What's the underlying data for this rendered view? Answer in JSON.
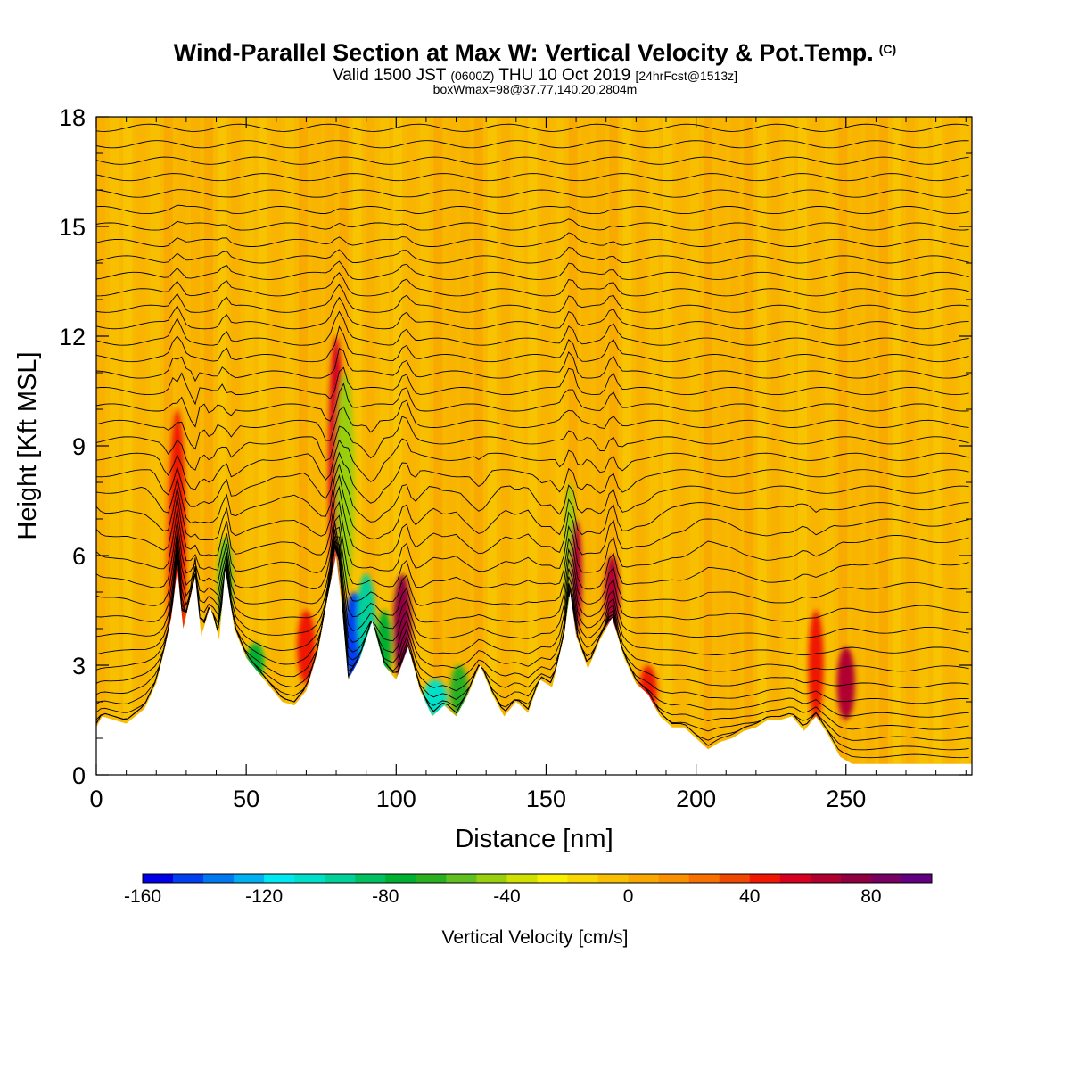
{
  "header": {
    "title": "Wind-Parallel Section at Max W: Vertical Velocity & Pot.Temp.",
    "copyright": "(C)",
    "valid_prefix": "Valid 1500 JST",
    "valid_z": "(0600Z)",
    "valid_date": "THU 10 Oct 2019",
    "forecast": "[24hrFcst@1513z]",
    "boxwmax": "boxWmax=98@37.77,140.20,2804m"
  },
  "chart_data": {
    "type": "heatmap",
    "title": "Wind-Parallel Section at Max W: Vertical Velocity & Pot.Temp.",
    "xlabel": "Distance [nm]",
    "ylabel": "Height [Kft MSL]",
    "xlim": [
      0,
      292
    ],
    "ylim": [
      0,
      18
    ],
    "x_ticks": [
      "0",
      "50",
      "100",
      "150",
      "200",
      "250"
    ],
    "y_ticks": [
      "0",
      "3",
      "6",
      "9",
      "12",
      "15",
      "18"
    ],
    "colorbar": {
      "label": "Vertical Velocity [cm/s]",
      "range": [
        -160,
        100
      ],
      "step": 10,
      "tick_labels": [
        "-160",
        "-120",
        "-80",
        "-40",
        "0",
        "40",
        "80"
      ],
      "colors": [
        "#0000e8",
        "#0040f0",
        "#0078f0",
        "#00b0f0",
        "#00e8f0",
        "#00e0c8",
        "#00d09a",
        "#00c060",
        "#00b030",
        "#28b020",
        "#60c020",
        "#98d010",
        "#d0e000",
        "#f8f000",
        "#f8d800",
        "#f8c000",
        "#f8a800",
        "#f89000",
        "#f87000",
        "#f04800",
        "#f01800",
        "#d80020",
        "#b00030",
        "#900040",
        "#780060",
        "#600080"
      ]
    },
    "terrain_kft": [
      [
        0,
        1.3
      ],
      [
        2,
        1.6
      ],
      [
        10,
        1.4
      ],
      [
        16,
        1.8
      ],
      [
        20,
        2.5
      ],
      [
        23,
        3.5
      ],
      [
        25,
        4.3
      ],
      [
        27,
        5.6
      ],
      [
        29,
        4.0
      ],
      [
        33,
        5.4
      ],
      [
        35,
        3.8
      ],
      [
        38,
        4.6
      ],
      [
        41,
        3.7
      ],
      [
        43,
        5.6
      ],
      [
        46,
        4.0
      ],
      [
        50,
        3.2
      ],
      [
        54,
        2.8
      ],
      [
        58,
        2.4
      ],
      [
        62,
        2.0
      ],
      [
        66,
        1.9
      ],
      [
        70,
        2.3
      ],
      [
        74,
        3.4
      ],
      [
        77,
        4.8
      ],
      [
        80,
        6.0
      ],
      [
        82,
        4.5
      ],
      [
        84,
        2.6
      ],
      [
        88,
        3.2
      ],
      [
        92,
        4.2
      ],
      [
        96,
        3.0
      ],
      [
        100,
        2.6
      ],
      [
        104,
        3.5
      ],
      [
        108,
        2.3
      ],
      [
        112,
        1.6
      ],
      [
        116,
        1.9
      ],
      [
        120,
        1.6
      ],
      [
        124,
        2.2
      ],
      [
        128,
        3.0
      ],
      [
        132,
        2.2
      ],
      [
        136,
        1.6
      ],
      [
        140,
        2.0
      ],
      [
        144,
        1.7
      ],
      [
        148,
        2.6
      ],
      [
        152,
        2.4
      ],
      [
        156,
        3.8
      ],
      [
        158,
        5.0
      ],
      [
        160,
        3.8
      ],
      [
        164,
        2.9
      ],
      [
        168,
        3.7
      ],
      [
        172,
        4.3
      ],
      [
        176,
        3.2
      ],
      [
        180,
        2.5
      ],
      [
        184,
        2.2
      ],
      [
        188,
        1.6
      ],
      [
        192,
        1.3
      ],
      [
        196,
        1.3
      ],
      [
        200,
        1.0
      ],
      [
        204,
        0.7
      ],
      [
        208,
        0.9
      ],
      [
        212,
        1.0
      ],
      [
        216,
        1.2
      ],
      [
        220,
        1.3
      ],
      [
        224,
        1.5
      ],
      [
        228,
        1.5
      ],
      [
        232,
        1.6
      ],
      [
        236,
        1.2
      ],
      [
        240,
        1.6
      ],
      [
        244,
        1.1
      ],
      [
        248,
        0.5
      ],
      [
        252,
        0.3
      ],
      [
        260,
        0.3
      ],
      [
        270,
        0.3
      ],
      [
        280,
        0.3
      ],
      [
        292,
        0.3
      ]
    ],
    "vertical_velocity_features": [
      {
        "x": 27,
        "w": 3,
        "z": [
          1.5,
          10
        ],
        "w_cms": 40
      },
      {
        "x": 43,
        "w": 2.5,
        "z": [
          4,
          6.5
        ],
        "w_cms": -60
      },
      {
        "x": 53,
        "w": 3,
        "z": [
          2.6,
          3.6
        ],
        "w_cms": -80
      },
      {
        "x": 70,
        "w": 3,
        "z": [
          2.5,
          4.5
        ],
        "w_cms": 40
      },
      {
        "x": 80,
        "w": 2.5,
        "z": [
          5,
          12
        ],
        "w_cms": 50
      },
      {
        "x": 83,
        "w": 3,
        "z": [
          5,
          11
        ],
        "w_cms": -50
      },
      {
        "x": 86,
        "w": 3.5,
        "z": [
          2.5,
          5
        ],
        "w_cms": -150
      },
      {
        "x": 90,
        "w": 3,
        "z": [
          3,
          5.5
        ],
        "w_cms": -100
      },
      {
        "x": 96,
        "w": 2.5,
        "z": [
          2.6,
          4.5
        ],
        "w_cms": -80
      },
      {
        "x": 102,
        "w": 3,
        "z": [
          2.6,
          5.5
        ],
        "w_cms": 70
      },
      {
        "x": 113,
        "w": 4,
        "z": [
          1.6,
          2.6
        ],
        "w_cms": -110
      },
      {
        "x": 121,
        "w": 3,
        "z": [
          1.6,
          3.0
        ],
        "w_cms": -70
      },
      {
        "x": 158,
        "w": 2,
        "z": [
          3.8,
          8
        ],
        "w_cms": -50
      },
      {
        "x": 160,
        "w": 2,
        "z": [
          3.8,
          7
        ],
        "w_cms": 60
      },
      {
        "x": 172,
        "w": 2.5,
        "z": [
          3.8,
          6
        ],
        "w_cms": 60
      },
      {
        "x": 184,
        "w": 3,
        "z": [
          1.5,
          3
        ],
        "w_cms": 40
      },
      {
        "x": 240,
        "w": 2.5,
        "z": [
          1.5,
          4.5
        ],
        "w_cms": 40
      },
      {
        "x": 250,
        "w": 3,
        "z": [
          1.5,
          3.5
        ],
        "w_cms": 60
      }
    ]
  }
}
